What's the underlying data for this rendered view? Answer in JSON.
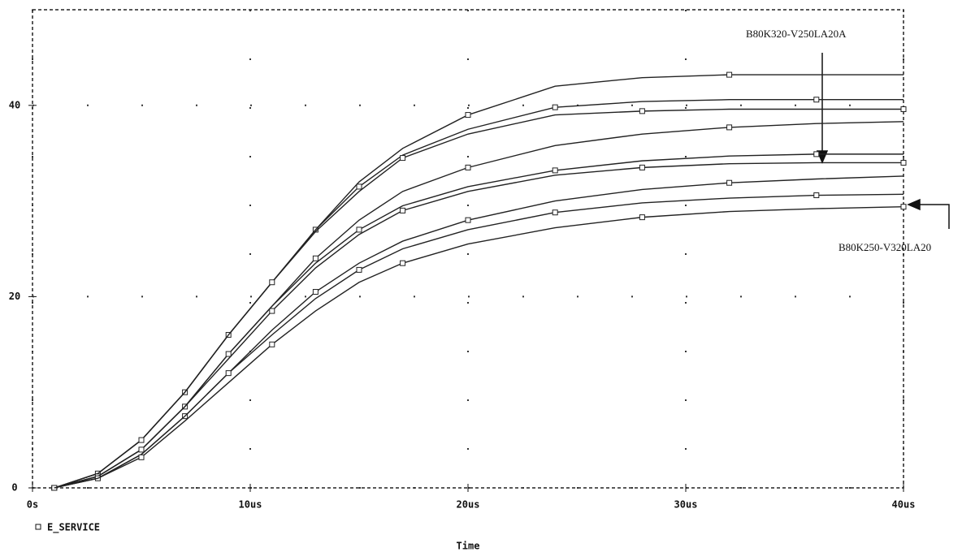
{
  "chart_data": {
    "type": "line",
    "x_label": "Time",
    "legend_label": "E_SERVICE",
    "annotations": [
      "B80K320-V250LA20A",
      "B80K250-V320LA20"
    ],
    "x": [
      1,
      3,
      5,
      7,
      9,
      11,
      13,
      15,
      17,
      20,
      24,
      28,
      32,
      36,
      40
    ],
    "series": [
      {
        "color": "#222222",
        "values": [
          0,
          1.5,
          5,
          10,
          16,
          21.5,
          27,
          32,
          35.5,
          39,
          42,
          42.9,
          43.2,
          43.2,
          43.2
        ]
      },
      {
        "color": "#222222",
        "values": [
          0,
          1.5,
          5,
          10,
          16,
          21.5,
          27,
          31.5,
          34.8,
          37.5,
          39.8,
          40.4,
          40.6,
          40.6,
          40.6
        ]
      },
      {
        "color": "#222222",
        "values": [
          0,
          1.5,
          5,
          10,
          16,
          21.5,
          26.8,
          31,
          34.5,
          37,
          39,
          39.4,
          39.6,
          39.6,
          39.6
        ]
      },
      {
        "color": "#222222",
        "values": [
          0,
          1.2,
          4,
          8.5,
          14,
          19,
          24,
          28,
          31,
          33.5,
          35.8,
          37,
          37.7,
          38.1,
          38.3
        ]
      },
      {
        "color": "#222222",
        "values": [
          0,
          1.2,
          4,
          8.5,
          14,
          19,
          23.5,
          27,
          29.5,
          31.5,
          33.2,
          34.2,
          34.7,
          34.9,
          34.9
        ]
      },
      {
        "color": "#222222",
        "values": [
          0,
          1.2,
          4,
          8.5,
          13.5,
          18.5,
          23,
          26.5,
          29,
          31,
          32.7,
          33.5,
          33.9,
          34,
          34
        ]
      },
      {
        "color": "#222222",
        "values": [
          0,
          1,
          3.5,
          7.5,
          12,
          16.5,
          20.5,
          23.5,
          25.8,
          28,
          30,
          31.2,
          31.9,
          32.3,
          32.6
        ]
      },
      {
        "color": "#222222",
        "values": [
          0,
          1,
          3.5,
          7.5,
          12,
          16,
          19.8,
          22.8,
          25,
          27,
          28.8,
          29.8,
          30.3,
          30.6,
          30.7
        ]
      },
      {
        "color": "#222222",
        "values": [
          0,
          1,
          3.2,
          7,
          11,
          15,
          18.5,
          21.5,
          23.5,
          25.5,
          27.2,
          28.3,
          28.9,
          29.2,
          29.4
        ]
      }
    ],
    "xlim": [
      0,
      40
    ],
    "xticks": [
      {
        "value": 0,
        "label": "0s"
      },
      {
        "value": 10,
        "label": "10us"
      },
      {
        "value": 20,
        "label": "20us"
      },
      {
        "value": 30,
        "label": "30us"
      },
      {
        "value": 40,
        "label": "40us"
      }
    ],
    "ylim": [
      0,
      50
    ],
    "yticks": [
      0,
      20,
      40
    ],
    "grid": true
  }
}
